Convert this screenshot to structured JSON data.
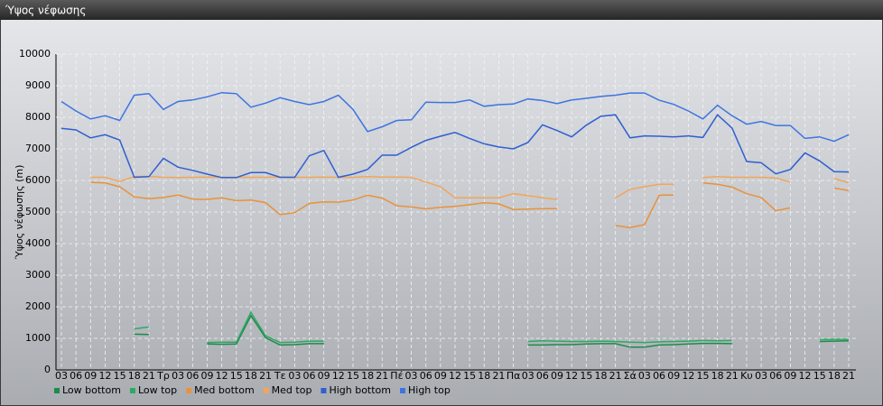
{
  "chart_data": {
    "type": "line",
    "title": "Ύψος νέφωσης",
    "y_label": "Ύψος νέφωσης (m)",
    "categories": [
      "03",
      "06",
      "09",
      "12",
      "15",
      "18",
      "21",
      "Τρ",
      "03",
      "06",
      "09",
      "12",
      "15",
      "18",
      "21",
      "Τε",
      "03",
      "06",
      "09",
      "12",
      "15",
      "18",
      "21",
      "Πέ",
      "03",
      "06",
      "09",
      "12",
      "15",
      "18",
      "21",
      "Πα",
      "03",
      "06",
      "09",
      "12",
      "15",
      "18",
      "21",
      "Σά",
      "03",
      "06",
      "09",
      "12",
      "15",
      "18",
      "21",
      "Κυ",
      "03",
      "06",
      "09",
      "12",
      "15",
      "18",
      "21"
    ],
    "ylim": [
      0,
      10000
    ],
    "yticks": [
      0,
      1000,
      2000,
      3000,
      4000,
      5000,
      6000,
      7000,
      8000,
      9000,
      10000
    ],
    "grid": true,
    "legend": "bottom-left",
    "series": [
      {
        "name": "Low bottom",
        "color": "#1e8a4c",
        "values": [
          null,
          null,
          null,
          null,
          null,
          1130,
          1120,
          null,
          null,
          null,
          820,
          810,
          820,
          1720,
          1020,
          790,
          800,
          830,
          830,
          null,
          null,
          null,
          null,
          null,
          null,
          null,
          null,
          null,
          null,
          null,
          null,
          null,
          790,
          790,
          800,
          800,
          820,
          830,
          830,
          720,
          720,
          790,
          800,
          820,
          840,
          840,
          830,
          null,
          null,
          null,
          null,
          null,
          900,
          910,
          920
        ]
      },
      {
        "name": "Low top",
        "color": "#2fa866",
        "values": [
          null,
          null,
          null,
          null,
          null,
          1300,
          1360,
          null,
          null,
          null,
          870,
          880,
          880,
          1820,
          1080,
          870,
          880,
          910,
          910,
          null,
          null,
          null,
          null,
          null,
          null,
          null,
          null,
          null,
          null,
          null,
          null,
          null,
          900,
          920,
          910,
          900,
          900,
          910,
          900,
          880,
          870,
          890,
          900,
          910,
          930,
          920,
          930,
          null,
          null,
          null,
          null,
          null,
          960,
          970,
          970
        ]
      },
      {
        "name": "Med bottom",
        "color": "#e8923a",
        "values": [
          null,
          null,
          5940,
          5920,
          5800,
          5480,
          5420,
          5460,
          5540,
          5410,
          5400,
          5450,
          5360,
          5380,
          5300,
          4920,
          4980,
          5270,
          5320,
          5310,
          5380,
          5530,
          5440,
          5200,
          5160,
          5100,
          5150,
          5180,
          5230,
          5290,
          5260,
          5080,
          5090,
          5110,
          5110,
          null,
          null,
          null,
          4570,
          4510,
          4600,
          5530,
          5540,
          null,
          5920,
          5880,
          5790,
          5580,
          5460,
          5040,
          5130,
          null,
          null,
          5760,
          5680
        ]
      },
      {
        "name": "Med top",
        "color": "#f2a55a",
        "values": [
          null,
          null,
          6100,
          6100,
          5970,
          6120,
          6130,
          6100,
          6090,
          6100,
          6110,
          6100,
          6100,
          6100,
          6100,
          6110,
          6100,
          6100,
          6110,
          6100,
          6100,
          6120,
          6110,
          6110,
          6100,
          5950,
          5800,
          5450,
          5450,
          5450,
          5450,
          5580,
          5520,
          5450,
          5400,
          null,
          null,
          null,
          5450,
          5720,
          5800,
          5880,
          5880,
          null,
          6090,
          6120,
          6100,
          6100,
          6100,
          6080,
          5950,
          null,
          null,
          6060,
          5930
        ]
      },
      {
        "name": "High bottom",
        "color": "#2f5fd0",
        "values": [
          7650,
          7600,
          7350,
          7450,
          7280,
          6100,
          6120,
          6700,
          6420,
          6320,
          6200,
          6090,
          6090,
          6250,
          6250,
          6100,
          6100,
          6780,
          6950,
          6100,
          6200,
          6350,
          6800,
          6800,
          7050,
          7270,
          7400,
          7520,
          7330,
          7160,
          7060,
          7000,
          7200,
          7760,
          7580,
          7380,
          7750,
          8030,
          8080,
          7350,
          7410,
          7400,
          7380,
          7410,
          7360,
          8080,
          7660,
          6600,
          6560,
          6210,
          6350,
          6870,
          6620,
          6280,
          6270
        ]
      },
      {
        "name": "High top",
        "color": "#3d74e0",
        "values": [
          8500,
          8200,
          7950,
          8050,
          7900,
          8700,
          8750,
          8250,
          8500,
          8550,
          8650,
          8780,
          8750,
          8320,
          8450,
          8620,
          8500,
          8400,
          8500,
          8700,
          8250,
          7550,
          7700,
          7900,
          7920,
          8480,
          8470,
          8470,
          8550,
          8350,
          8400,
          8420,
          8580,
          8530,
          8430,
          8550,
          8600,
          8660,
          8700,
          8770,
          8770,
          8540,
          8410,
          8200,
          7950,
          8380,
          8050,
          7780,
          7870,
          7740,
          7740,
          7330,
          7380,
          7240,
          7450
        ]
      }
    ]
  }
}
